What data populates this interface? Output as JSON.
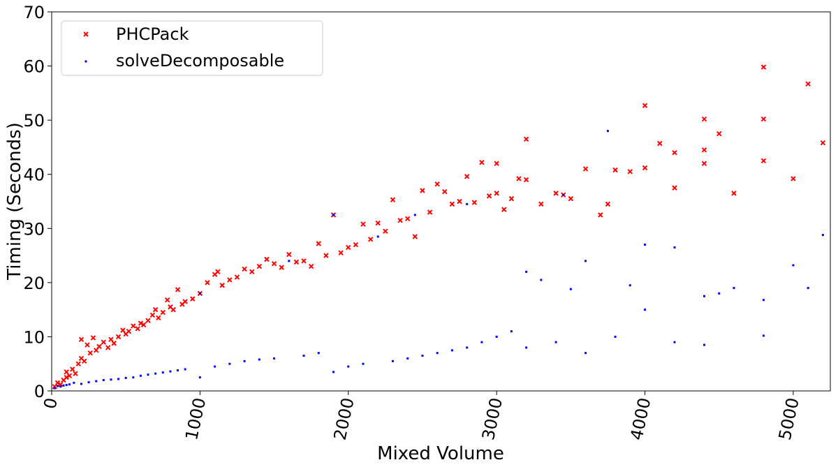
{
  "chart_data": {
    "type": "scatter",
    "xlabel": "Mixed Volume",
    "ylabel": "Timing (Seconds)",
    "xlim": [
      0,
      5250
    ],
    "ylim": [
      0,
      70
    ],
    "x_ticks": [
      "0",
      "1000",
      "2000",
      "3000",
      "4000",
      "5000"
    ],
    "x_tick_values": [
      0,
      1000,
      2000,
      3000,
      4000,
      5000
    ],
    "y_ticks": [
      "0",
      "10",
      "20",
      "30",
      "40",
      "50",
      "60",
      "70"
    ],
    "y_tick_values": [
      0,
      10,
      20,
      30,
      40,
      50,
      60,
      70
    ],
    "grid": false,
    "legend": {
      "position": "top-left"
    },
    "series": [
      {
        "name": "PHCPack",
        "marker": "x",
        "color": "#ff0000",
        "points": [
          [
            20,
            0.8
          ],
          [
            40,
            1.5
          ],
          [
            60,
            1.2
          ],
          [
            80,
            2.0
          ],
          [
            100,
            3.5
          ],
          [
            100,
            2.5
          ],
          [
            120,
            2.8
          ],
          [
            140,
            4.0
          ],
          [
            160,
            3.2
          ],
          [
            180,
            5.0
          ],
          [
            200,
            9.5
          ],
          [
            200,
            6.0
          ],
          [
            220,
            5.5
          ],
          [
            240,
            8.5
          ],
          [
            260,
            7.0
          ],
          [
            280,
            9.8
          ],
          [
            300,
            7.5
          ],
          [
            320,
            8.2
          ],
          [
            350,
            9.0
          ],
          [
            380,
            8.0
          ],
          [
            400,
            9.5
          ],
          [
            420,
            8.8
          ],
          [
            450,
            10.0
          ],
          [
            480,
            11.2
          ],
          [
            500,
            10.5
          ],
          [
            520,
            11.0
          ],
          [
            550,
            12.0
          ],
          [
            580,
            11.5
          ],
          [
            600,
            12.5
          ],
          [
            620,
            12.2
          ],
          [
            650,
            13.0
          ],
          [
            680,
            14.0
          ],
          [
            700,
            15.0
          ],
          [
            720,
            13.5
          ],
          [
            750,
            14.5
          ],
          [
            780,
            16.8
          ],
          [
            800,
            15.5
          ],
          [
            820,
            15.0
          ],
          [
            850,
            18.7
          ],
          [
            880,
            16.0
          ],
          [
            900,
            16.5
          ],
          [
            950,
            17.0
          ],
          [
            1000,
            18.0
          ],
          [
            1050,
            20.0
          ],
          [
            1100,
            21.5
          ],
          [
            1120,
            22.0
          ],
          [
            1150,
            19.5
          ],
          [
            1200,
            20.5
          ],
          [
            1250,
            21.0
          ],
          [
            1300,
            22.5
          ],
          [
            1350,
            22.0
          ],
          [
            1400,
            23.0
          ],
          [
            1450,
            24.3
          ],
          [
            1500,
            23.5
          ],
          [
            1550,
            22.8
          ],
          [
            1600,
            25.2
          ],
          [
            1650,
            23.8
          ],
          [
            1700,
            24.0
          ],
          [
            1750,
            23.0
          ],
          [
            1800,
            27.2
          ],
          [
            1850,
            25.0
          ],
          [
            1900,
            32.5
          ],
          [
            1950,
            25.5
          ],
          [
            2000,
            26.5
          ],
          [
            2050,
            27.0
          ],
          [
            2100,
            30.8
          ],
          [
            2150,
            28.0
          ],
          [
            2200,
            31.0
          ],
          [
            2250,
            29.5
          ],
          [
            2300,
            35.3
          ],
          [
            2350,
            31.5
          ],
          [
            2400,
            31.8
          ],
          [
            2450,
            28.5
          ],
          [
            2500,
            37.0
          ],
          [
            2550,
            33.0
          ],
          [
            2600,
            38.2
          ],
          [
            2650,
            36.8
          ],
          [
            2700,
            34.5
          ],
          [
            2750,
            35.0
          ],
          [
            2800,
            39.6
          ],
          [
            2850,
            34.8
          ],
          [
            2900,
            42.2
          ],
          [
            2950,
            36.0
          ],
          [
            3000,
            42.0
          ],
          [
            3000,
            36.5
          ],
          [
            3050,
            33.5
          ],
          [
            3100,
            35.5
          ],
          [
            3150,
            39.2
          ],
          [
            3200,
            46.5
          ],
          [
            3200,
            39.0
          ],
          [
            3300,
            34.5
          ],
          [
            3400,
            36.5
          ],
          [
            3450,
            36.2
          ],
          [
            3500,
            35.5
          ],
          [
            3600,
            41.0
          ],
          [
            3700,
            32.5
          ],
          [
            3750,
            34.5
          ],
          [
            3800,
            40.8
          ],
          [
            3900,
            40.5
          ],
          [
            4000,
            52.7
          ],
          [
            4000,
            41.2
          ],
          [
            4100,
            45.7
          ],
          [
            4200,
            44.0
          ],
          [
            4200,
            37.5
          ],
          [
            4400,
            50.2
          ],
          [
            4400,
            44.5
          ],
          [
            4400,
            42.0
          ],
          [
            4500,
            47.5
          ],
          [
            4600,
            36.5
          ],
          [
            4800,
            59.8
          ],
          [
            4800,
            50.2
          ],
          [
            4800,
            42.5
          ],
          [
            5000,
            39.2
          ],
          [
            5100,
            56.7
          ],
          [
            5200,
            45.8
          ]
        ]
      },
      {
        "name": "solveDecomposable",
        "marker": ".",
        "color": "#0000ff",
        "points": [
          [
            20,
            0.5
          ],
          [
            40,
            0.9
          ],
          [
            60,
            0.8
          ],
          [
            80,
            1.0
          ],
          [
            100,
            1.1
          ],
          [
            120,
            1.2
          ],
          [
            150,
            1.5
          ],
          [
            200,
            1.3
          ],
          [
            250,
            1.6
          ],
          [
            300,
            1.8
          ],
          [
            350,
            2.0
          ],
          [
            400,
            2.1
          ],
          [
            450,
            2.2
          ],
          [
            500,
            2.4
          ],
          [
            550,
            2.5
          ],
          [
            600,
            2.8
          ],
          [
            650,
            3.0
          ],
          [
            700,
            3.2
          ],
          [
            750,
            3.4
          ],
          [
            800,
            3.6
          ],
          [
            850,
            3.8
          ],
          [
            900,
            4.0
          ],
          [
            1000,
            2.5
          ],
          [
            1000,
            18.0
          ],
          [
            1100,
            4.5
          ],
          [
            1200,
            5.0
          ],
          [
            1300,
            5.5
          ],
          [
            1400,
            5.8
          ],
          [
            1500,
            6.0
          ],
          [
            1600,
            24.0
          ],
          [
            1700,
            6.5
          ],
          [
            1800,
            7.0
          ],
          [
            1900,
            32.5
          ],
          [
            1900,
            3.5
          ],
          [
            2000,
            4.5
          ],
          [
            2100,
            5.0
          ],
          [
            2200,
            28.5
          ],
          [
            2300,
            5.5
          ],
          [
            2400,
            6.0
          ],
          [
            2450,
            32.5
          ],
          [
            2500,
            6.5
          ],
          [
            2600,
            7.0
          ],
          [
            2700,
            7.5
          ],
          [
            2800,
            34.5
          ],
          [
            2800,
            8.0
          ],
          [
            2900,
            9.0
          ],
          [
            3000,
            10.0
          ],
          [
            3100,
            11.0
          ],
          [
            3200,
            22.0
          ],
          [
            3200,
            8.0
          ],
          [
            3300,
            20.5
          ],
          [
            3400,
            9.0
          ],
          [
            3450,
            36.2
          ],
          [
            3500,
            18.8
          ],
          [
            3600,
            7.0
          ],
          [
            3600,
            24.0
          ],
          [
            3750,
            48.0
          ],
          [
            3800,
            10.0
          ],
          [
            3900,
            19.5
          ],
          [
            4000,
            27.0
          ],
          [
            4000,
            15.0
          ],
          [
            4200,
            26.5
          ],
          [
            4200,
            9.0
          ],
          [
            4400,
            17.5
          ],
          [
            4400,
            8.5
          ],
          [
            4500,
            18.0
          ],
          [
            4600,
            19.0
          ],
          [
            4800,
            16.8
          ],
          [
            4800,
            10.2
          ],
          [
            5000,
            23.2
          ],
          [
            5100,
            19.0
          ],
          [
            5200,
            28.8
          ]
        ]
      }
    ]
  }
}
